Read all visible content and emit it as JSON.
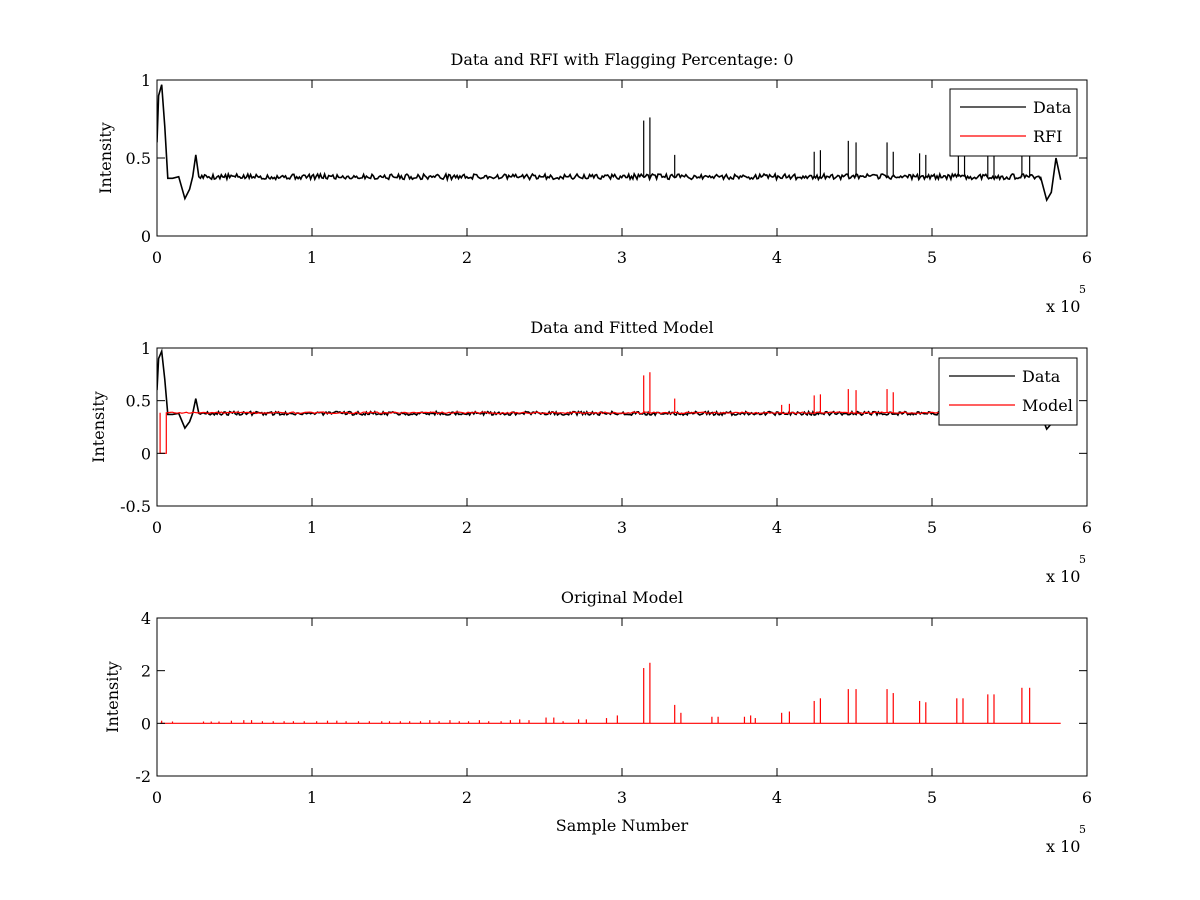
{
  "chart_data": [
    {
      "type": "line",
      "title": "Data and RFI with Flagging Percentage: 0",
      "xlabel": "",
      "ylabel": "Intensity",
      "xlim": [
        0,
        600000
      ],
      "ylim": [
        0,
        1
      ],
      "x_ticks": [
        "0",
        "1",
        "2",
        "3",
        "4",
        "5",
        "6"
      ],
      "y_ticks": [
        "0",
        "0.5",
        "1"
      ],
      "x_multiplier_base": "x 10",
      "x_multiplier_exp": "5",
      "grid": false,
      "legend_position": "top-right",
      "legend": [
        "Data",
        "RFI"
      ],
      "series": [
        {
          "name": "Data",
          "color": "#000000",
          "baseline": 0.38,
          "points": [
            [
              0,
              0.6
            ],
            [
              1000,
              0.9
            ],
            [
              3000,
              0.97
            ],
            [
              5000,
              0.7
            ],
            [
              7000,
              0.37
            ],
            [
              10000,
              0.37
            ],
            [
              14000,
              0.38
            ],
            [
              18000,
              0.24
            ],
            [
              21000,
              0.3
            ],
            [
              23000,
              0.38
            ],
            [
              25000,
              0.52
            ],
            [
              27000,
              0.38
            ],
            [
              570000,
              0.38
            ],
            [
              574000,
              0.23
            ],
            [
              577000,
              0.28
            ],
            [
              580000,
              0.5
            ],
            [
              583000,
              0.36
            ]
          ],
          "spikes": [
            [
              314000,
              0.74
            ],
            [
              318000,
              0.76
            ],
            [
              334000,
              0.52
            ],
            [
              424000,
              0.54
            ],
            [
              428000,
              0.55
            ],
            [
              446000,
              0.61
            ],
            [
              451000,
              0.6
            ],
            [
              471000,
              0.6
            ],
            [
              475000,
              0.54
            ],
            [
              492000,
              0.53
            ],
            [
              496000,
              0.52
            ],
            [
              517000,
              0.52
            ],
            [
              521000,
              0.52
            ],
            [
              536000,
              0.52
            ],
            [
              540000,
              0.52
            ],
            [
              558000,
              0.52
            ],
            [
              563000,
              0.52
            ]
          ]
        },
        {
          "name": "RFI",
          "color": "#ff0000",
          "points": []
        }
      ]
    },
    {
      "type": "line",
      "title": "Data and Fitted Model",
      "xlabel": "",
      "ylabel": "Intensity",
      "xlim": [
        0,
        600000
      ],
      "ylim": [
        -0.5,
        1
      ],
      "x_ticks": [
        "0",
        "1",
        "2",
        "3",
        "4",
        "5",
        "6"
      ],
      "y_ticks": [
        "-0.5",
        "0",
        "0.5",
        "1"
      ],
      "x_multiplier_base": "x 10",
      "x_multiplier_exp": "5",
      "grid": false,
      "legend_position": "top-right",
      "legend": [
        "Data",
        "Model"
      ],
      "series": [
        {
          "name": "Data",
          "color": "#000000",
          "baseline": 0.38,
          "points": [
            [
              0,
              0.6
            ],
            [
              1000,
              0.9
            ],
            [
              3000,
              0.97
            ],
            [
              5000,
              0.7
            ],
            [
              7000,
              0.37
            ],
            [
              10000,
              0.37
            ],
            [
              14000,
              0.38
            ],
            [
              18000,
              0.24
            ],
            [
              21000,
              0.3
            ],
            [
              23000,
              0.38
            ],
            [
              25000,
              0.52
            ],
            [
              27000,
              0.38
            ],
            [
              570000,
              0.38
            ],
            [
              574000,
              0.23
            ],
            [
              577000,
              0.28
            ],
            [
              580000,
              0.5
            ],
            [
              583000,
              0.36
            ]
          ]
        },
        {
          "name": "Model",
          "color": "#ff0000",
          "baseline": 0.385,
          "points": [
            [
              2000,
              0.38
            ],
            [
              2000,
              0.0
            ],
            [
              6000,
              0.0
            ],
            [
              6000,
              0.38
            ]
          ],
          "spikes": [
            [
              314000,
              0.74
            ],
            [
              318000,
              0.77
            ],
            [
              334000,
              0.52
            ],
            [
              403000,
              0.46
            ],
            [
              408000,
              0.47
            ],
            [
              424000,
              0.55
            ],
            [
              428000,
              0.56
            ],
            [
              446000,
              0.61
            ],
            [
              451000,
              0.6
            ],
            [
              471000,
              0.61
            ],
            [
              475000,
              0.58
            ]
          ]
        }
      ]
    },
    {
      "type": "line",
      "title": "Original Model",
      "xlabel": "Sample Number",
      "ylabel": "Intensity",
      "xlim": [
        0,
        600000
      ],
      "ylim": [
        -2,
        4
      ],
      "x_ticks": [
        "0",
        "1",
        "2",
        "3",
        "4",
        "5",
        "6"
      ],
      "y_ticks": [
        "-2",
        "0",
        "2",
        "4"
      ],
      "x_multiplier_base": "x 10",
      "x_multiplier_exp": "5",
      "grid": false,
      "legend_position": "none",
      "series": [
        {
          "name": "Model",
          "color": "#ff0000",
          "baseline": 0,
          "x_end": 583000,
          "spikes": [
            [
              3000,
              0.1
            ],
            [
              10000,
              0.07
            ],
            [
              30000,
              0.07
            ],
            [
              35000,
              0.07
            ],
            [
              40000,
              0.07
            ],
            [
              48000,
              0.1
            ],
            [
              56000,
              0.12
            ],
            [
              61000,
              0.12
            ],
            [
              68000,
              0.08
            ],
            [
              75000,
              0.08
            ],
            [
              82000,
              0.08
            ],
            [
              88000,
              0.08
            ],
            [
              95000,
              0.08
            ],
            [
              103000,
              0.08
            ],
            [
              110000,
              0.1
            ],
            [
              116000,
              0.1
            ],
            [
              122000,
              0.08
            ],
            [
              130000,
              0.08
            ],
            [
              137000,
              0.08
            ],
            [
              145000,
              0.08
            ],
            [
              150000,
              0.08
            ],
            [
              157000,
              0.08
            ],
            [
              163000,
              0.08
            ],
            [
              170000,
              0.08
            ],
            [
              176000,
              0.12
            ],
            [
              182000,
              0.08
            ],
            [
              189000,
              0.12
            ],
            [
              195000,
              0.08
            ],
            [
              201000,
              0.08
            ],
            [
              208000,
              0.12
            ],
            [
              214000,
              0.08
            ],
            [
              222000,
              0.08
            ],
            [
              228000,
              0.12
            ],
            [
              234000,
              0.15
            ],
            [
              240000,
              0.12
            ],
            [
              251000,
              0.22
            ],
            [
              256000,
              0.22
            ],
            [
              262000,
              0.08
            ],
            [
              272000,
              0.15
            ],
            [
              277000,
              0.15
            ],
            [
              290000,
              0.2
            ],
            [
              297000,
              0.3
            ],
            [
              314000,
              2.1
            ],
            [
              318000,
              2.3
            ],
            [
              334000,
              0.7
            ],
            [
              338000,
              0.4
            ],
            [
              358000,
              0.25
            ],
            [
              362000,
              0.25
            ],
            [
              379000,
              0.25
            ],
            [
              383000,
              0.3
            ],
            [
              386000,
              0.2
            ],
            [
              403000,
              0.4
            ],
            [
              408000,
              0.45
            ],
            [
              424000,
              0.85
            ],
            [
              428000,
              0.95
            ],
            [
              446000,
              1.3
            ],
            [
              451000,
              1.3
            ],
            [
              471000,
              1.3
            ],
            [
              475000,
              1.15
            ],
            [
              492000,
              0.85
            ],
            [
              496000,
              0.8
            ],
            [
              516000,
              0.95
            ],
            [
              520000,
              0.95
            ],
            [
              536000,
              1.1
            ],
            [
              540000,
              1.1
            ],
            [
              558000,
              1.35
            ],
            [
              563000,
              1.35
            ]
          ]
        }
      ]
    }
  ]
}
